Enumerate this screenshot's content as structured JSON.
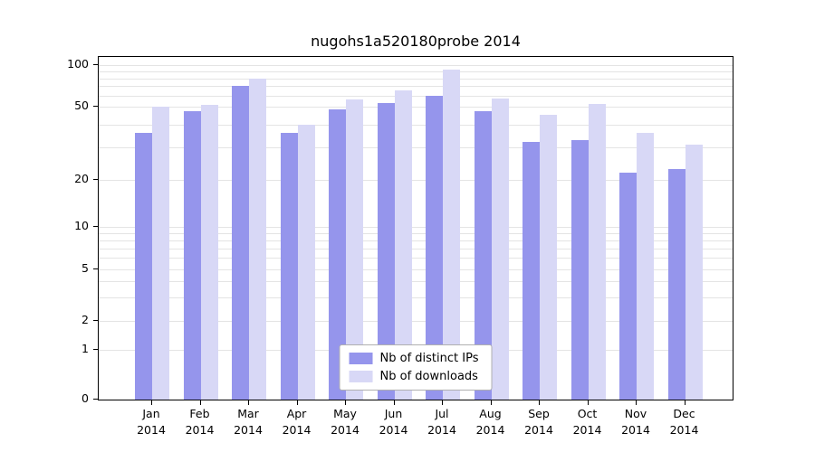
{
  "chart_data": {
    "type": "bar",
    "title": "nugohs1a520180probe 2014",
    "xlabel": "",
    "ylabel": "",
    "categories": [
      "Jan",
      "Feb",
      "Mar",
      "Apr",
      "May",
      "Jun",
      "Jul",
      "Aug",
      "Sep",
      "Oct",
      "Nov",
      "Dec"
    ],
    "year_label": "2014",
    "series": [
      {
        "name": "Nb of distinct IPs",
        "color": "#9595ec",
        "values": [
          36,
          47,
          70,
          36,
          48,
          53,
          60,
          47,
          32,
          33,
          22,
          23
        ]
      },
      {
        "name": "Nb of downloads",
        "color": "#d8d8f6",
        "values": [
          50,
          51,
          80,
          40,
          56,
          65,
          92,
          57,
          45,
          52,
          36,
          31
        ]
      }
    ],
    "yticks": [
      0,
      1,
      2,
      5,
      10,
      20,
      50,
      100
    ],
    "minor_gridlines": [
      1,
      2,
      3,
      4,
      5,
      6,
      7,
      8,
      9,
      10,
      20,
      30,
      40,
      50,
      60,
      70,
      80,
      90,
      100
    ],
    "ylim": [
      0,
      100
    ],
    "yscale": "log",
    "grid": "horizontal",
    "legend_position": "bottom-center",
    "colors": {
      "bar_distinct_ips": "#9595ec",
      "bar_downloads": "#d8d8f6",
      "gridline": "#e4e4e4",
      "axis": "#000000"
    }
  }
}
